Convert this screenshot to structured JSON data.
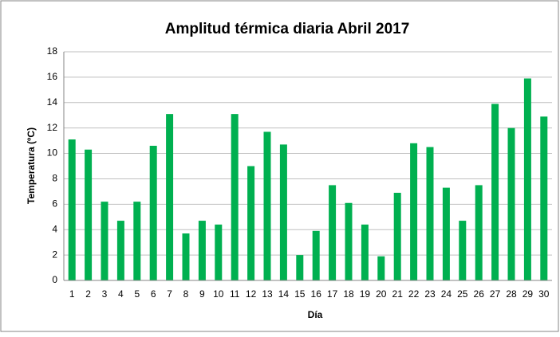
{
  "chart_data": {
    "type": "bar",
    "title": "Amplitud térmica diaria Abril 2017",
    "x_label": "Día",
    "y_label": "Temperatura (ºC)",
    "categories": [
      "1",
      "2",
      "3",
      "4",
      "5",
      "6",
      "7",
      "8",
      "9",
      "10",
      "11",
      "12",
      "13",
      "14",
      "15",
      "16",
      "17",
      "18",
      "19",
      "20",
      "21",
      "22",
      "23",
      "24",
      "25",
      "26",
      "27",
      "28",
      "29",
      "30"
    ],
    "values": [
      11.1,
      10.3,
      6.2,
      4.7,
      6.2,
      10.6,
      13.1,
      3.7,
      4.7,
      4.4,
      13.1,
      9.0,
      11.7,
      10.7,
      2.0,
      3.9,
      7.5,
      6.1,
      4.4,
      1.9,
      6.9,
      10.8,
      10.5,
      7.3,
      4.7,
      7.5,
      13.9,
      12.0,
      15.9,
      12.9
    ],
    "color": "#00b050",
    "ylim": [
      0,
      18
    ],
    "yticks": [
      0,
      2,
      4,
      6,
      8,
      10,
      12,
      14,
      16,
      18
    ],
    "grid": true
  }
}
